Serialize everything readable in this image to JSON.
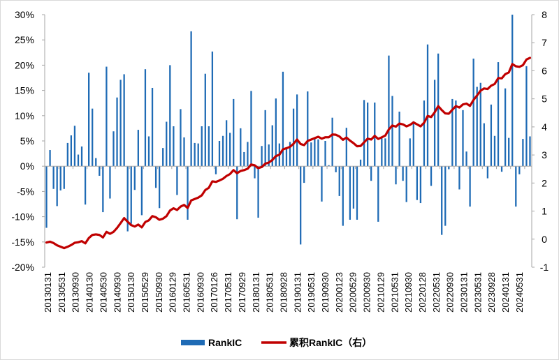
{
  "chart_data": {
    "type": "bar+line",
    "title": "",
    "x_tick_labels": [
      "20130131",
      "20130531",
      "20130930",
      "20140130",
      "20140530",
      "20140930",
      "20150130",
      "20150529",
      "20150930",
      "20160129",
      "20160531",
      "20160930",
      "20170126",
      "20170531",
      "20170929",
      "20180131",
      "20180531",
      "20180928",
      "20190131",
      "20190531",
      "20190930",
      "20200123",
      "20200529",
      "20200930",
      "20210129",
      "20210531",
      "20210930",
      "20220128",
      "20220531",
      "20220930",
      "20230131",
      "20230531",
      "20230928",
      "20240131",
      "20240531"
    ],
    "y_left": {
      "min": -0.2,
      "max": 0.3,
      "ticks": [
        "-20%",
        "-15%",
        "-10%",
        "-5%",
        "0%",
        "5%",
        "10%",
        "15%",
        "20%",
        "25%",
        "30%"
      ]
    },
    "y_right": {
      "min": -1,
      "max": 8,
      "ticks": [
        "-1",
        "0",
        "1",
        "2",
        "3",
        "4",
        "5",
        "6",
        "7",
        "8"
      ]
    },
    "grid": false,
    "legend_position": "bottom",
    "series": [
      {
        "name": "RankIC",
        "type": "bar",
        "axis": "left",
        "color": "#1f6bb5",
        "values": [
          -0.122,
          0.032,
          -0.045,
          -0.079,
          -0.048,
          -0.045,
          0.046,
          0.061,
          0.08,
          0.023,
          0.039,
          -0.076,
          0.185,
          0.114,
          0.016,
          -0.019,
          -0.091,
          0.197,
          -0.064,
          0.069,
          0.136,
          0.171,
          0.182,
          -0.129,
          -0.114,
          -0.047,
          0.072,
          -0.097,
          0.192,
          0.059,
          0.155,
          -0.043,
          -0.083,
          0.036,
          0.088,
          0.2,
          0.079,
          -0.057,
          0.113,
          0.057,
          -0.106,
          0.267,
          0.046,
          0.045,
          0.079,
          0.183,
          0.079,
          0.227,
          -0.016,
          0.05,
          0.06,
          0.091,
          0.066,
          0.133,
          -0.105,
          0.075,
          0.028,
          0.048,
          0.149,
          -0.024,
          -0.102,
          0.04,
          0.111,
          0.043,
          0.081,
          0.134,
          0.045,
          0.187,
          0.034,
          0.048,
          0.114,
          0.142,
          -0.155,
          -0.033,
          0.148,
          0.047,
          0.055,
          0.053,
          -0.07,
          0.05,
          0.002,
          0.096,
          -0.012,
          -0.059,
          -0.118,
          0.076,
          -0.106,
          -0.084,
          -0.106,
          0.013,
          0.131,
          0.126,
          -0.029,
          0.126,
          -0.11,
          0.057,
          0.055,
          0.219,
          0.139,
          -0.036,
          0.108,
          -0.029,
          -0.071,
          0.055,
          0.089,
          -0.067,
          -0.073,
          0.13,
          0.241,
          -0.039,
          0.171,
          0.223,
          -0.136,
          -0.118,
          -0.006,
          0.133,
          0.13,
          -0.046,
          0.111,
          0.029,
          -0.08,
          0.213,
          0.157,
          0.165,
          0.085,
          -0.024,
          0.122,
          0.06,
          0.206,
          -0.011,
          0.154,
          0.056,
          0.3,
          -0.08,
          -0.016,
          0.054,
          0.198,
          0.059
        ]
      },
      {
        "name": "累积RankIC（右）",
        "type": "line",
        "axis": "right",
        "color": "#c00000",
        "values": [
          -0.12,
          -0.09,
          -0.14,
          -0.22,
          -0.27,
          -0.32,
          -0.27,
          -0.21,
          -0.13,
          -0.11,
          -0.07,
          -0.15,
          0.04,
          0.15,
          0.17,
          0.15,
          0.06,
          0.26,
          0.19,
          0.26,
          0.4,
          0.57,
          0.75,
          0.62,
          0.5,
          0.45,
          0.52,
          0.42,
          0.61,
          0.67,
          0.82,
          0.78,
          0.69,
          0.73,
          0.82,
          1.02,
          1.1,
          1.04,
          1.16,
          1.22,
          1.11,
          1.38,
          1.43,
          1.48,
          1.56,
          1.75,
          1.83,
          2.06,
          2.04,
          2.09,
          2.15,
          2.25,
          2.32,
          2.46,
          2.35,
          2.43,
          2.46,
          2.51,
          2.66,
          2.63,
          2.53,
          2.57,
          2.69,
          2.73,
          2.82,
          2.96,
          3.01,
          3.2,
          3.24,
          3.29,
          3.4,
          3.55,
          3.39,
          3.35,
          3.5,
          3.55,
          3.6,
          3.65,
          3.58,
          3.63,
          3.63,
          3.73,
          3.72,
          3.66,
          3.54,
          3.62,
          3.51,
          3.42,
          3.31,
          3.32,
          3.45,
          3.58,
          3.55,
          3.68,
          3.57,
          3.63,
          3.69,
          3.91,
          4.05,
          4.01,
          4.12,
          4.09,
          4.02,
          4.07,
          4.16,
          4.09,
          4.02,
          4.15,
          4.39,
          4.35,
          4.52,
          4.74,
          4.6,
          4.48,
          4.47,
          4.61,
          4.74,
          4.69,
          4.8,
          4.83,
          4.75,
          4.96,
          5.12,
          5.29,
          5.37,
          5.35,
          5.47,
          5.53,
          5.74,
          5.73,
          5.88,
          5.94,
          6.24,
          6.16,
          6.14,
          6.2,
          6.4,
          6.46
        ]
      }
    ]
  }
}
